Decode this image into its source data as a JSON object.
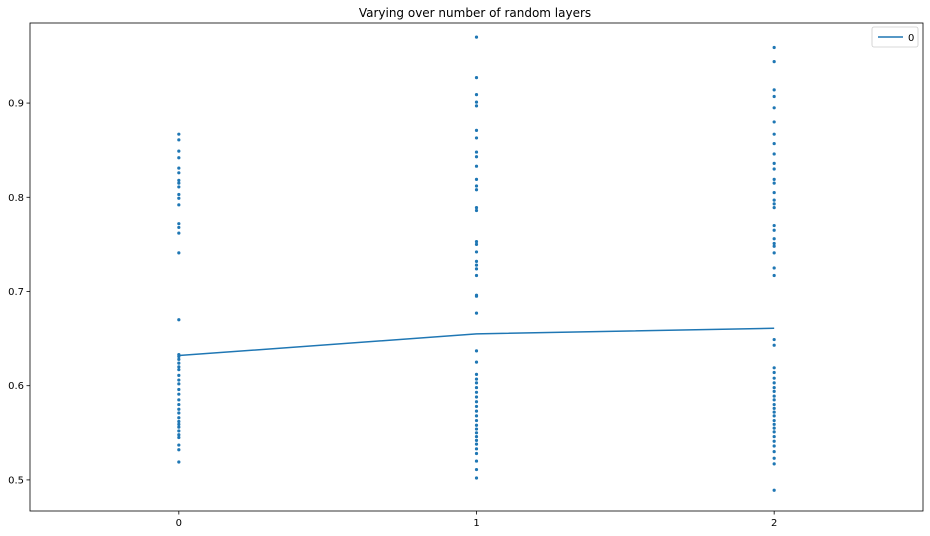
{
  "chart_data": {
    "type": "line",
    "title": "Varying over number of random layers",
    "xlabel": "",
    "ylabel": "",
    "x_ticks": [
      "0",
      "1",
      "2"
    ],
    "y_ticks": [
      "0.5",
      "0.6",
      "0.7",
      "0.8",
      "0.9"
    ],
    "xlim": [
      -0.5,
      2.5
    ],
    "ylim": [
      0.467,
      0.985
    ],
    "grid": false,
    "legend_position": "top-right",
    "colors": {
      "series": "#1f77b4"
    },
    "series": [
      {
        "name": "0",
        "x": [
          0,
          1,
          2
        ],
        "y": [
          0.632,
          0.655,
          0.661
        ]
      }
    ],
    "scatter_points": [
      {
        "x": 0,
        "y": [
          0.867,
          0.861,
          0.849,
          0.842,
          0.831,
          0.826,
          0.818,
          0.815,
          0.811,
          0.803,
          0.799,
          0.792,
          0.772,
          0.768,
          0.762,
          0.741,
          0.67,
          0.633,
          0.631,
          0.628,
          0.624,
          0.62,
          0.617,
          0.611,
          0.606,
          0.602,
          0.596,
          0.591,
          0.585,
          0.58,
          0.575,
          0.571,
          0.566,
          0.562,
          0.559,
          0.556,
          0.552,
          0.548,
          0.545,
          0.537,
          0.532,
          0.519
        ]
      },
      {
        "x": 1,
        "y": [
          0.97,
          0.927,
          0.909,
          0.901,
          0.897,
          0.871,
          0.863,
          0.848,
          0.843,
          0.833,
          0.819,
          0.812,
          0.808,
          0.789,
          0.786,
          0.753,
          0.75,
          0.742,
          0.732,
          0.728,
          0.724,
          0.717,
          0.696,
          0.695,
          0.677,
          0.637,
          0.625,
          0.612,
          0.607,
          0.603,
          0.598,
          0.593,
          0.588,
          0.583,
          0.578,
          0.573,
          0.568,
          0.563,
          0.558,
          0.554,
          0.55,
          0.546,
          0.542,
          0.538,
          0.533,
          0.528,
          0.52,
          0.511,
          0.502
        ]
      },
      {
        "x": 2,
        "y": [
          0.959,
          0.944,
          0.914,
          0.907,
          0.895,
          0.88,
          0.867,
          0.857,
          0.846,
          0.836,
          0.83,
          0.819,
          0.815,
          0.805,
          0.797,
          0.793,
          0.789,
          0.77,
          0.765,
          0.756,
          0.751,
          0.748,
          0.741,
          0.725,
          0.717,
          0.649,
          0.643,
          0.619,
          0.614,
          0.608,
          0.603,
          0.598,
          0.594,
          0.589,
          0.585,
          0.58,
          0.576,
          0.572,
          0.568,
          0.563,
          0.559,
          0.555,
          0.551,
          0.546,
          0.541,
          0.536,
          0.53,
          0.523,
          0.517,
          0.489
        ]
      }
    ]
  }
}
